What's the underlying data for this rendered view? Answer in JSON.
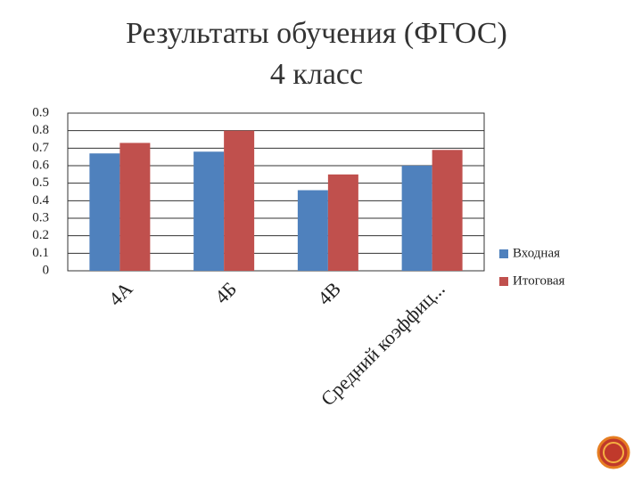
{
  "chart_data": {
    "type": "bar",
    "title": "Результаты обучения (ФГОС)",
    "subtitle": "4 класс",
    "categories": [
      "4А",
      "4Б",
      "4В",
      "Средний коэффиц..."
    ],
    "series": [
      {
        "name": "Входная",
        "color": "#4f81bd",
        "values": [
          0.67,
          0.68,
          0.46,
          0.6
        ]
      },
      {
        "name": "Итоговая",
        "color": "#c0504d",
        "values": [
          0.73,
          0.8,
          0.55,
          0.69
        ]
      }
    ],
    "ylim": [
      0,
      0.9
    ],
    "yticks": [
      0,
      0.1,
      0.2,
      0.3,
      0.4,
      0.5,
      0.6,
      0.7,
      0.8,
      0.9
    ],
    "grid": true,
    "legend": "right"
  }
}
